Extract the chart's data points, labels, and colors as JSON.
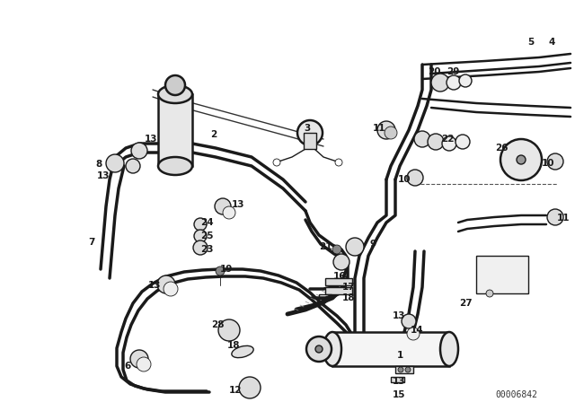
{
  "background_color": "#ffffff",
  "image_code": "00006842",
  "fig_width": 6.4,
  "fig_height": 4.48,
  "dpi": 100,
  "line_color": "#1a1a1a",
  "lw_thick": 2.5,
  "lw_med": 1.8,
  "lw_thin": 1.0,
  "lw_xtra": 0.6
}
